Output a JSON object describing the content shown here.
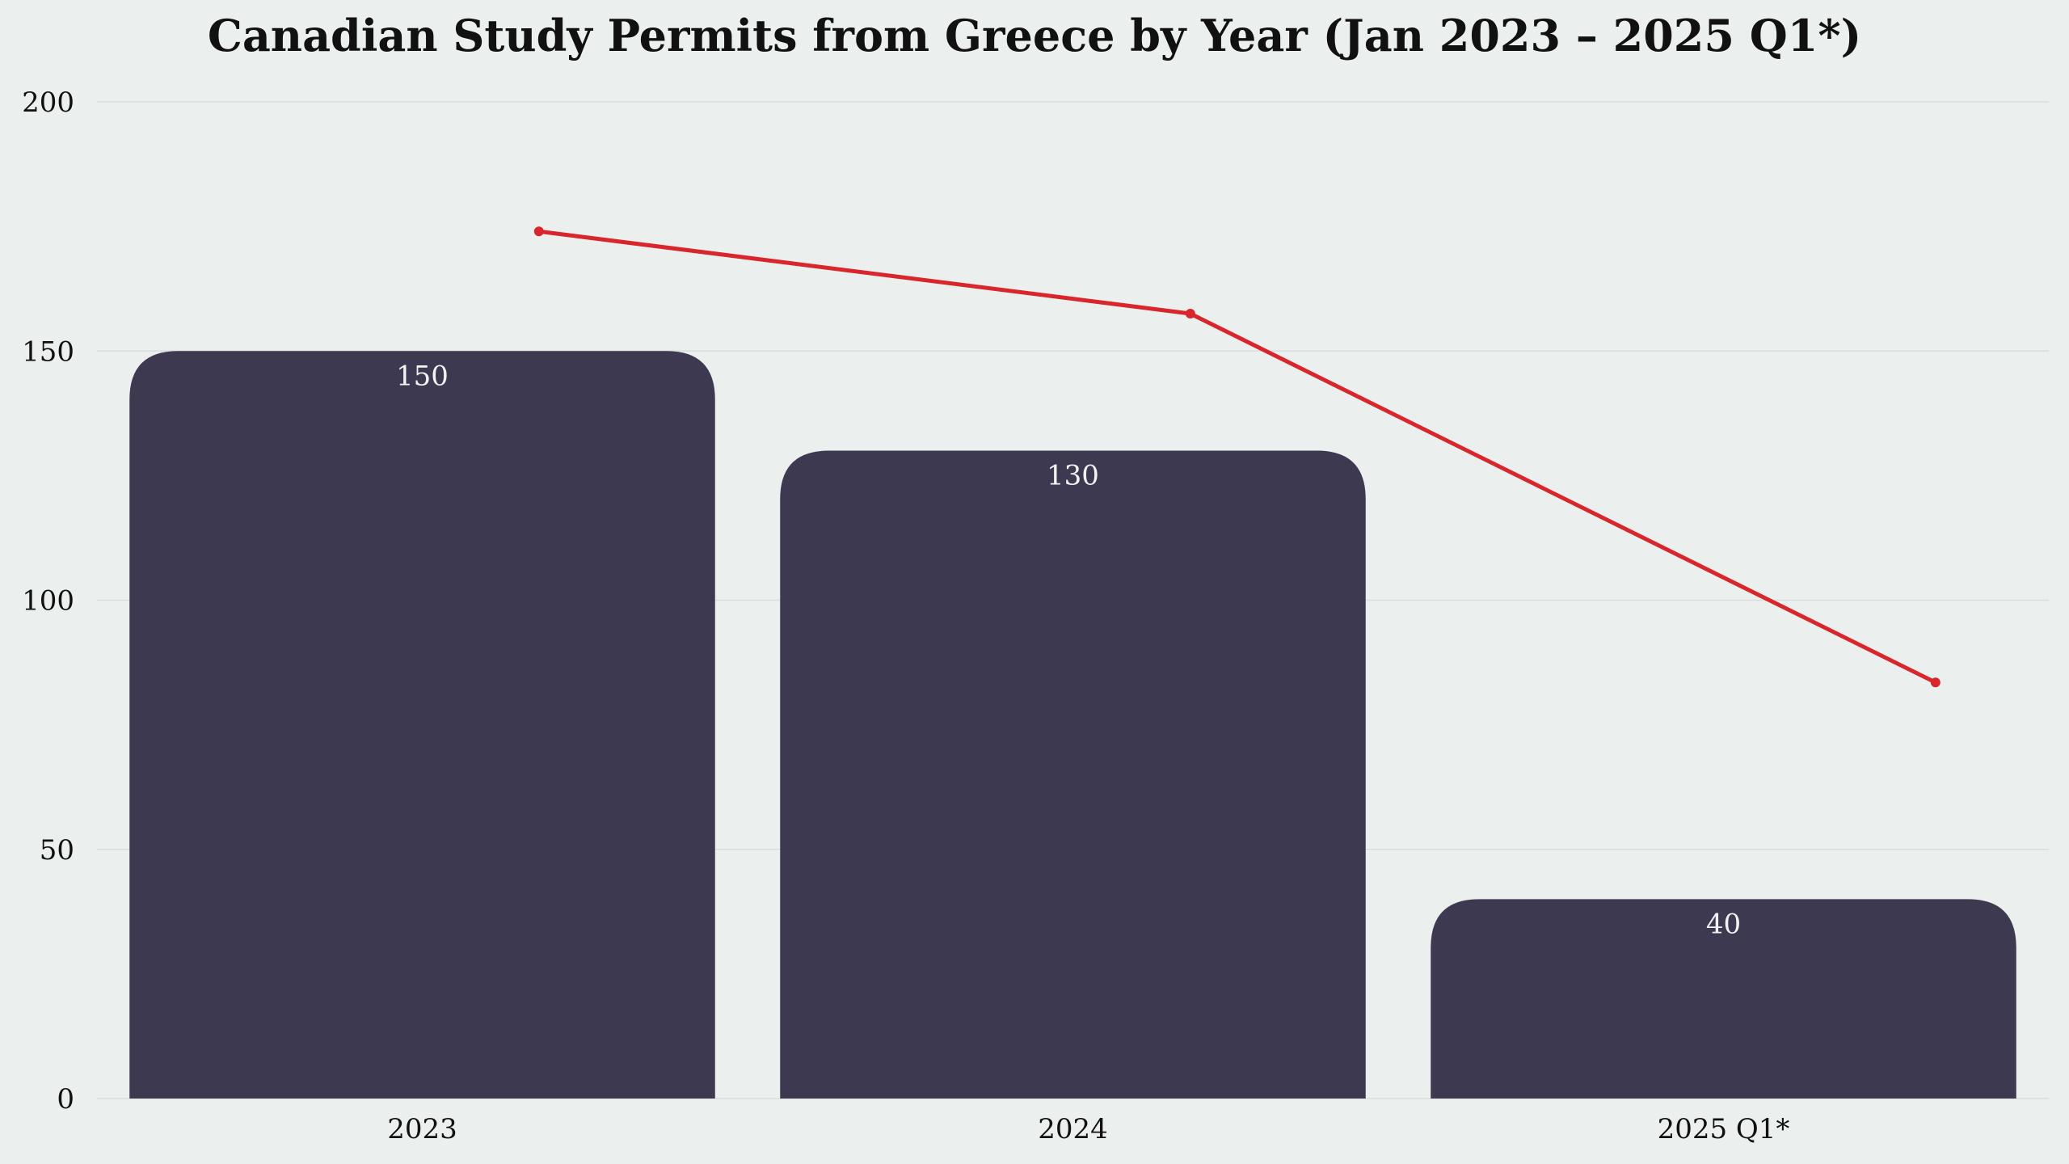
{
  "chart_data": {
    "type": "bar",
    "title": "Canadian Study Permits from Greece by Year (Jan 2023 – 2025 Q1*)",
    "xlabel": "",
    "ylabel": "",
    "categories": [
      "2023",
      "2024",
      "2025 Q1*"
    ],
    "series": [
      {
        "type": "bar",
        "values": [
          150,
          130,
          40
        ],
        "data_labels": [
          "150",
          "130",
          "40"
        ],
        "color": "#3d3950"
      },
      {
        "type": "line",
        "values": [
          174,
          157.5,
          83.5
        ],
        "color": "#d9262c"
      }
    ],
    "ylim": [
      0,
      200
    ],
    "yticks": [
      0,
      50,
      100,
      150,
      200
    ],
    "ytick_labels": [
      "0",
      "50",
      "100",
      "150",
      "200"
    ],
    "grid": "horizontal",
    "legend": "none"
  },
  "colors": {
    "background": "#ebefed",
    "bar": "#3d3950",
    "line": "#d9262c",
    "grid": "#d9dddb",
    "text": "#111111",
    "data_label": "#f2f2f2"
  }
}
